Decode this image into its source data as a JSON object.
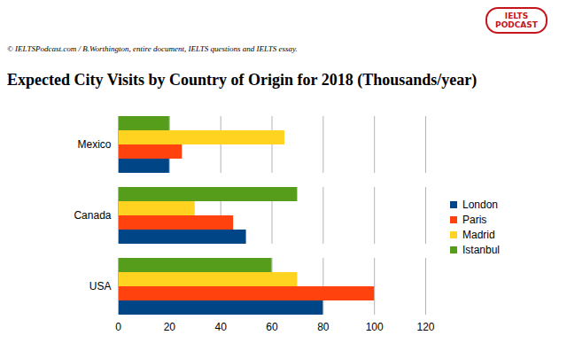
{
  "chart_data": {
    "type": "bar",
    "orientation": "horizontal",
    "title": "Expected City Visits by Country of Origin for 2018 (Thousands/year)",
    "annotations": [
      "© IELTSPodcast.com / B.Worthington, entire document, IELTS questions and IELTS essay.",
      "IELTS PODCAST"
    ],
    "categories": [
      "Mexico",
      "Canada",
      "USA"
    ],
    "series": [
      {
        "name": "London",
        "color": "#004586",
        "values": [
          20,
          50,
          80
        ]
      },
      {
        "name": "Paris",
        "color": "#ff420e",
        "values": [
          25,
          45,
          100
        ]
      },
      {
        "name": "Madrid",
        "color": "#ffd320",
        "values": [
          65,
          30,
          70
        ]
      },
      {
        "name": "Istanbul",
        "color": "#579d1c",
        "values": [
          20,
          70,
          60
        ]
      }
    ],
    "xlim": [
      0,
      120
    ],
    "xticks": [
      0,
      20,
      40,
      60,
      80,
      100,
      120
    ],
    "grid": true,
    "legend": "right",
    "data_labels": false
  }
}
